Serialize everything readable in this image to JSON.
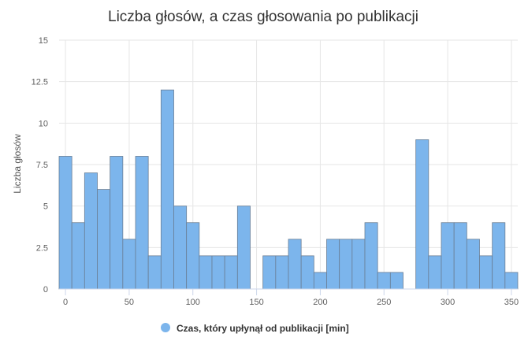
{
  "chart_data": {
    "type": "bar",
    "subtype": "histogram",
    "title": "Liczba głosów, a czas głosowania po publikacji",
    "xlabel": "",
    "ylabel": "Liczba głosów",
    "legend_position": "bottom-center",
    "grid": true,
    "bin_width": 10,
    "xlim": [
      -5,
      355
    ],
    "ylim": [
      0,
      15
    ],
    "x_ticks": [
      0,
      50,
      100,
      150,
      200,
      250,
      300,
      350
    ],
    "y_ticks": [
      "0",
      "2.5",
      "5",
      "7.5",
      "10",
      "12.5",
      "15"
    ],
    "bar_color": "#7cb5ec",
    "series": [
      {
        "name": "Czas, który upłynął od publikacji [min]",
        "bins": [
          {
            "x": 0,
            "value": 8
          },
          {
            "x": 5,
            "value": 4
          },
          {
            "x": 15,
            "value": 7
          },
          {
            "x": 25,
            "value": 6
          },
          {
            "x": 35,
            "value": 8
          },
          {
            "x": 45,
            "value": 3
          },
          {
            "x": 55,
            "value": 8
          },
          {
            "x": 65,
            "value": 2
          },
          {
            "x": 75,
            "value": 12
          },
          {
            "x": 85,
            "value": 5
          },
          {
            "x": 95,
            "value": 4
          },
          {
            "x": 105,
            "value": 2
          },
          {
            "x": 115,
            "value": 2
          },
          {
            "x": 125,
            "value": 2
          },
          {
            "x": 135,
            "value": 5
          },
          {
            "x": 155,
            "value": 2
          },
          {
            "x": 165,
            "value": 2
          },
          {
            "x": 175,
            "value": 3
          },
          {
            "x": 185,
            "value": 2
          },
          {
            "x": 195,
            "value": 1
          },
          {
            "x": 205,
            "value": 3
          },
          {
            "x": 215,
            "value": 3
          },
          {
            "x": 225,
            "value": 3
          },
          {
            "x": 235,
            "value": 4
          },
          {
            "x": 245,
            "value": 1
          },
          {
            "x": 255,
            "value": 1
          },
          {
            "x": 275,
            "value": 9
          },
          {
            "x": 285,
            "value": 2
          },
          {
            "x": 295,
            "value": 4
          },
          {
            "x": 305,
            "value": 4
          },
          {
            "x": 315,
            "value": 3
          },
          {
            "x": 325,
            "value": 2
          },
          {
            "x": 335,
            "value": 4
          },
          {
            "x": 345,
            "value": 1
          }
        ]
      }
    ]
  }
}
